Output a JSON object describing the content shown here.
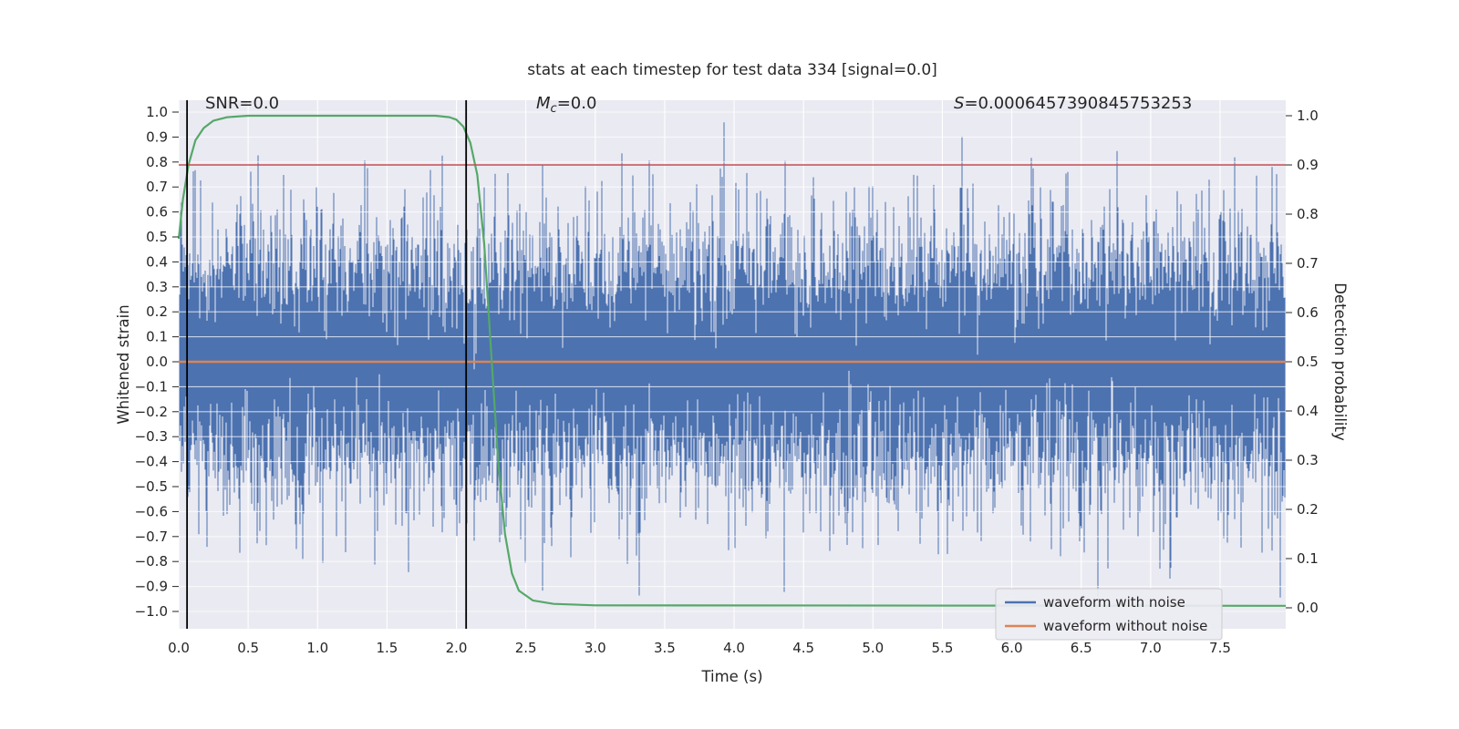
{
  "figure": {
    "title": "stats at each timestep for test data 334 [signal=0.0]",
    "annotations": {
      "snr": "SNR=0.0",
      "mc": {
        "base": "M",
        "sub": "c",
        "rest": "=0.0"
      },
      "s_base": "S",
      "s_rest": "=0.0006457390845753253"
    },
    "colors": {
      "axes_bg": "#eaeaf2",
      "grid": "#ffffff",
      "text": "#262626",
      "noise": "#4c72b0",
      "clean": "#dd8452",
      "detection": "#55a868",
      "threshold": "#c44e52",
      "marker": "#000000",
      "legend_bg": "#ececf3",
      "legend_border": "#cccccc"
    }
  },
  "chart_data": {
    "type": "line",
    "title": "stats at each timestep for test data 334 [signal=0.0]",
    "xlabel": "Time (s)",
    "ylabel_left": "Whitened strain",
    "ylabel_right": "Detection probability",
    "xlim": [
      0.0,
      7.973
    ],
    "ylim_left": [
      -1.05,
      1.05
    ],
    "ylim_right": [
      -0.05,
      1.05
    ],
    "grid": true,
    "x_ticks": [
      0.0,
      0.5,
      1.0,
      1.5,
      2.0,
      2.5,
      3.0,
      3.5,
      4.0,
      4.5,
      5.0,
      5.5,
      6.0,
      6.5,
      7.0,
      7.5
    ],
    "y_ticks_left": [
      1.0,
      0.9,
      0.8,
      0.7,
      0.6,
      0.5,
      0.4,
      0.3,
      0.2,
      0.1,
      0.0,
      -0.1,
      -0.2,
      -0.3,
      -0.4,
      -0.5,
      -0.6,
      -0.7,
      -0.8,
      -0.9,
      -1.0
    ],
    "y_ticks_right": [
      1.0,
      0.9,
      0.8,
      0.7,
      0.6,
      0.5,
      0.4,
      0.3,
      0.2,
      0.1,
      0.0
    ],
    "stats": {
      "SNR": 0.0,
      "Mc": 0.0,
      "S": 0.0006457390845753253,
      "test_index": 334,
      "signal": 0.0
    },
    "series": [
      {
        "name": "waveform with noise",
        "axis": "left",
        "kind": "gaussian-noise",
        "color": "#4c72b0",
        "mean": 0.0,
        "std": 0.26,
        "seed": 334,
        "samples_per_column": 10
      },
      {
        "name": "waveform without noise",
        "axis": "left",
        "kind": "constant",
        "color": "#dd8452",
        "value": 0.0
      },
      {
        "name": "detection probability",
        "axis": "right",
        "kind": "line",
        "color": "#55a868",
        "points": [
          [
            0.0,
            0.75
          ],
          [
            0.03,
            0.83
          ],
          [
            0.07,
            0.9
          ],
          [
            0.12,
            0.95
          ],
          [
            0.18,
            0.975
          ],
          [
            0.25,
            0.99
          ],
          [
            0.35,
            0.997
          ],
          [
            0.5,
            1.0
          ],
          [
            1.85,
            1.0
          ],
          [
            1.95,
            0.997
          ],
          [
            2.0,
            0.992
          ],
          [
            2.05,
            0.978
          ],
          [
            2.1,
            0.945
          ],
          [
            2.15,
            0.88
          ],
          [
            2.2,
            0.74
          ],
          [
            2.25,
            0.52
          ],
          [
            2.3,
            0.3
          ],
          [
            2.35,
            0.15
          ],
          [
            2.4,
            0.07
          ],
          [
            2.45,
            0.035
          ],
          [
            2.55,
            0.015
          ],
          [
            2.7,
            0.008
          ],
          [
            3.0,
            0.005
          ],
          [
            7.973,
            0.004
          ]
        ]
      },
      {
        "name": "detection threshold",
        "axis": "right",
        "kind": "hline",
        "color": "#c44e52",
        "value": 0.9
      },
      {
        "name": "event window markers",
        "axis": "x",
        "kind": "vlines",
        "color": "#000000",
        "values": [
          0.06,
          2.07
        ]
      }
    ],
    "legend": {
      "position": "lower right",
      "entries": [
        {
          "label": "waveform with noise",
          "color": "#4c72b0"
        },
        {
          "label": "waveform without noise",
          "color": "#dd8452"
        }
      ]
    }
  }
}
